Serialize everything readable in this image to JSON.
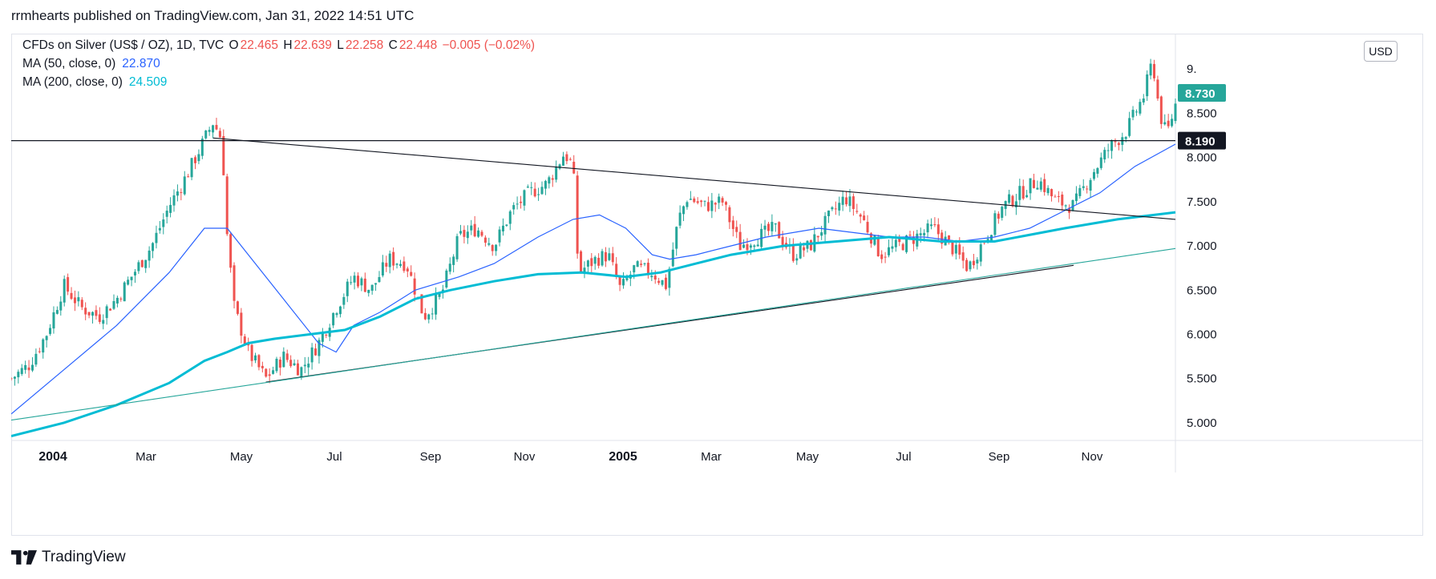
{
  "header": {
    "published": "rrmhearts published on TradingView.com, Jan 31, 2022 14:51 UTC"
  },
  "legend": {
    "symbol": "CFDs on Silver (US$ / OZ), 1D, TVC",
    "o_label": "O",
    "o": "22.465",
    "h_label": "H",
    "h": "22.639",
    "l_label": "L",
    "l": "22.258",
    "c_label": "C",
    "c": "22.448",
    "change": "−0.005 (−0.02%)",
    "ma50_label": "MA (50, close, 0)",
    "ma50_value": "22.870",
    "ma200_label": "MA (200, close, 0)",
    "ma200_value": "24.509"
  },
  "currency_button": "USD",
  "footer": {
    "brand": "TradingView"
  },
  "colors": {
    "up": "#26a69a",
    "down": "#ef5350",
    "ma50": "#2962ff",
    "ma200": "#00bcd4",
    "text": "#131722"
  },
  "chart_data": {
    "type": "candlestick",
    "x_axis_labels": [
      "2004",
      "Mar",
      "May",
      "Jul",
      "Sep",
      "Nov",
      "2005",
      "Mar",
      "May",
      "Jul",
      "Sep",
      "Nov"
    ],
    "x_axis_bold": [
      "2004",
      "2005"
    ],
    "y_axis_labels": [
      "9.",
      "8.500",
      "8.000",
      "7.500",
      "7.000",
      "6.500",
      "6.000",
      "5.500",
      "5.000"
    ],
    "ylim": [
      4.8,
      9.4
    ],
    "price_badges": [
      {
        "value": "8.730",
        "color": "#26a69a"
      },
      {
        "value": "8.190",
        "color": "#131722"
      }
    ],
    "horizontal_line": 8.19,
    "price_path": [
      [
        0,
        5.5
      ],
      [
        1,
        5.65
      ],
      [
        2,
        6.0
      ],
      [
        3,
        6.55
      ],
      [
        4,
        6.3
      ],
      [
        5,
        6.2
      ],
      [
        6,
        6.4
      ],
      [
        7,
        6.7
      ],
      [
        8,
        7.0
      ],
      [
        9,
        7.45
      ],
      [
        10,
        7.8
      ],
      [
        11,
        8.2
      ],
      [
        11.5,
        8.4
      ],
      [
        12,
        8.2
      ],
      [
        12.3,
        7.1
      ],
      [
        12.7,
        6.3
      ],
      [
        13.5,
        5.8
      ],
      [
        14.5,
        5.5
      ],
      [
        15.5,
        5.75
      ],
      [
        16.5,
        5.6
      ],
      [
        17.5,
        5.9
      ],
      [
        18.5,
        6.3
      ],
      [
        19.5,
        6.65
      ],
      [
        20.5,
        6.5
      ],
      [
        21.5,
        6.85
      ],
      [
        22.5,
        6.8
      ],
      [
        23.5,
        6.2
      ],
      [
        24.5,
        6.45
      ],
      [
        25.5,
        7.1
      ],
      [
        26.5,
        7.2
      ],
      [
        27.5,
        7.0
      ],
      [
        28.5,
        7.4
      ],
      [
        29.5,
        7.6
      ],
      [
        30.5,
        7.7
      ],
      [
        31.5,
        8.05
      ],
      [
        32,
        7.9
      ],
      [
        32.3,
        6.7
      ],
      [
        33.3,
        6.85
      ],
      [
        34,
        6.9
      ],
      [
        34.7,
        6.5
      ],
      [
        35.5,
        6.75
      ],
      [
        36.5,
        6.7
      ],
      [
        37.3,
        6.55
      ],
      [
        38,
        7.3
      ],
      [
        38.5,
        7.55
      ],
      [
        39.5,
        7.45
      ],
      [
        40.5,
        7.5
      ],
      [
        41.5,
        7.0
      ],
      [
        42.5,
        7.1
      ],
      [
        43.5,
        7.2
      ],
      [
        44.5,
        6.9
      ],
      [
        45.5,
        7.0
      ],
      [
        46.5,
        7.3
      ],
      [
        47.5,
        7.55
      ],
      [
        48.5,
        7.3
      ],
      [
        49.5,
        6.9
      ],
      [
        50.5,
        7.0
      ],
      [
        51.5,
        7.1
      ],
      [
        52.5,
        7.2
      ],
      [
        53.5,
        7.0
      ],
      [
        54.5,
        6.75
      ],
      [
        55.5,
        7.1
      ],
      [
        56.5,
        7.45
      ],
      [
        57.5,
        7.6
      ],
      [
        58.5,
        7.75
      ],
      [
        59.5,
        7.5
      ],
      [
        60.5,
        7.45
      ],
      [
        61.5,
        7.8
      ],
      [
        62.5,
        8.1
      ],
      [
        63.5,
        8.3
      ],
      [
        64.5,
        8.7
      ],
      [
        65,
        9.1
      ],
      [
        65.4,
        8.5
      ],
      [
        65.8,
        8.25
      ],
      [
        66.3,
        8.6
      ]
    ],
    "ma50": [
      [
        0,
        5.1
      ],
      [
        3,
        5.6
      ],
      [
        6,
        6.1
      ],
      [
        9,
        6.7
      ],
      [
        11,
        7.2
      ],
      [
        12.3,
        7.2
      ],
      [
        13.5,
        6.9
      ],
      [
        15.5,
        6.4
      ],
      [
        17.5,
        5.9
      ],
      [
        18.5,
        5.8
      ],
      [
        19.5,
        6.1
      ],
      [
        21,
        6.25
      ],
      [
        23,
        6.5
      ],
      [
        25.5,
        6.65
      ],
      [
        27.5,
        6.8
      ],
      [
        30,
        7.1
      ],
      [
        32,
        7.3
      ],
      [
        33.5,
        7.35
      ],
      [
        35,
        7.2
      ],
      [
        36.5,
        6.9
      ],
      [
        37.5,
        6.85
      ],
      [
        39,
        6.9
      ],
      [
        41,
        7.0
      ],
      [
        43,
        7.1
      ],
      [
        46,
        7.2
      ],
      [
        48,
        7.15
      ],
      [
        50,
        7.1
      ],
      [
        52,
        7.1
      ],
      [
        54,
        7.05
      ],
      [
        56,
        7.1
      ],
      [
        58,
        7.2
      ],
      [
        60,
        7.4
      ],
      [
        62,
        7.6
      ],
      [
        64,
        7.9
      ],
      [
        66.3,
        8.15
      ]
    ],
    "ma200": [
      [
        0,
        4.85
      ],
      [
        3,
        5.0
      ],
      [
        6,
        5.2
      ],
      [
        9,
        5.45
      ],
      [
        11,
        5.7
      ],
      [
        12.3,
        5.8
      ],
      [
        13.5,
        5.9
      ],
      [
        15,
        5.95
      ],
      [
        17,
        6.0
      ],
      [
        19,
        6.05
      ],
      [
        21,
        6.2
      ],
      [
        23,
        6.4
      ],
      [
        25,
        6.5
      ],
      [
        27.5,
        6.6
      ],
      [
        30,
        6.68
      ],
      [
        32.5,
        6.7
      ],
      [
        35,
        6.65
      ],
      [
        37,
        6.7
      ],
      [
        39,
        6.8
      ],
      [
        41,
        6.9
      ],
      [
        44,
        7.0
      ],
      [
        47,
        7.05
      ],
      [
        50,
        7.1
      ],
      [
        53,
        7.05
      ],
      [
        56,
        7.05
      ],
      [
        60,
        7.2
      ],
      [
        63,
        7.3
      ],
      [
        66.3,
        7.38
      ]
    ],
    "trendlines": [
      {
        "points": [
          [
            11.5,
            8.22
          ],
          [
            66.3,
            7.3
          ]
        ],
        "color": "#131722"
      },
      {
        "points": [
          [
            14.5,
            5.46
          ],
          [
            60.5,
            6.78
          ]
        ],
        "color": "#131722"
      },
      {
        "points": [
          [
            0,
            5.03
          ],
          [
            66.3,
            6.97
          ]
        ],
        "color": "#26a69a"
      }
    ]
  }
}
